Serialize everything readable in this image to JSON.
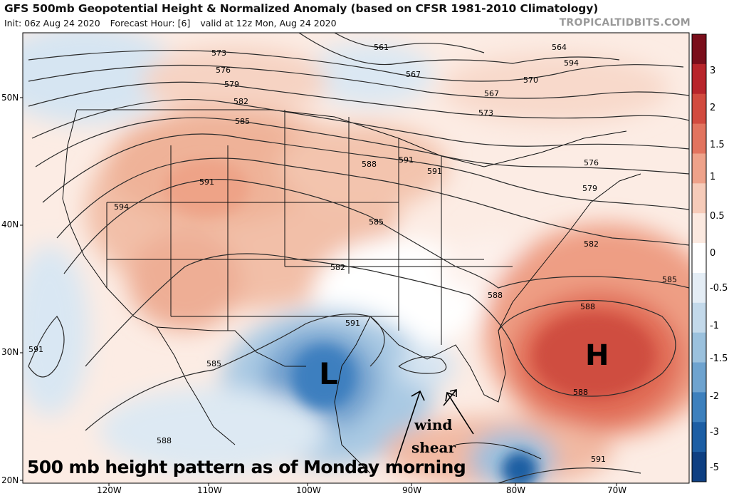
{
  "header": {
    "title": "GFS 500mb Geopotential Height & Normalized Anomaly (based on CFSR 1981-2010 Climatology)",
    "init": "Init: 06z Aug 24 2020",
    "forecast_hour": "Forecast Hour: [6]",
    "valid": "valid at 12z Mon, Aug 24 2020",
    "brand": "TROPICALTIDBITS.COM"
  },
  "annotations": {
    "caption": "500 mb height pattern as of Monday morning",
    "low_label": "L",
    "high_label": "H",
    "wind_line1": "wind",
    "wind_line2": "shear"
  },
  "contour_labels": [
    "561",
    "564",
    "567",
    "570",
    "573",
    "576",
    "579",
    "582",
    "585",
    "588",
    "591",
    "594",
    "567",
    "573",
    "576",
    "579",
    "582",
    "585",
    "588",
    "591",
    "594",
    "582",
    "588",
    "591",
    "591",
    "585",
    "588",
    "585",
    "588",
    "591",
    "591"
  ],
  "colorbar": {
    "labels": [
      "3",
      "2",
      "1.5",
      "1",
      "0.5",
      "0",
      "-0.5",
      "-1",
      "-1.5",
      "-2",
      "-3",
      "-5"
    ],
    "colors": [
      "#7a0e1b",
      "#b8252b",
      "#d24b3f",
      "#e2745f",
      "#eea28a",
      "#f6cbb9",
      "#fbe9e0",
      "#ffffff",
      "#e4edf5",
      "#c3d9ea",
      "#9bc1dd",
      "#6ea3cf",
      "#3d80bd",
      "#1c5ea4",
      "#0e3f82"
    ]
  },
  "axes": {
    "lat_labels": [
      "50N",
      "40N",
      "30N",
      "20N"
    ],
    "lon_labels": [
      "120W",
      "110W",
      "100W",
      "90W",
      "80W",
      "70W"
    ]
  },
  "colors": {
    "anomaly_positive_strong": "#c9463f",
    "anomaly_positive": "#f3bfa9",
    "anomaly_negative": "#3a7cbd",
    "contour": "#222222"
  }
}
